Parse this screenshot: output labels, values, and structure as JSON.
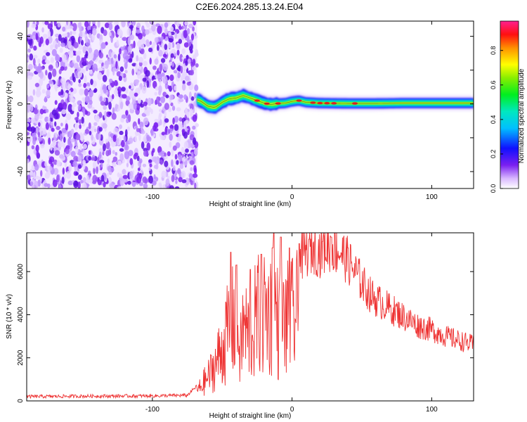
{
  "figure": {
    "title": "C2E6.2024.285.13.24.E04"
  },
  "chart_data": [
    {
      "type": "heatmap",
      "title": "C2E6.2024.285.13.24.E04",
      "xlabel": "Height of straight line (km)",
      "ylabel": "Frequency (Hz)",
      "xlim": [
        -190,
        130
      ],
      "ylim": [
        -50,
        49
      ],
      "xticks": [
        -100,
        0,
        100
      ],
      "yticks": [
        -40,
        -20,
        0,
        20,
        40
      ],
      "grid": false,
      "noise_region_x": [
        -190,
        -68
      ],
      "signal_center_freq": [
        [
          -68,
          2.5
        ],
        [
          -65,
          1.5
        ],
        [
          -60,
          -1.5
        ],
        [
          -55,
          -2.0
        ],
        [
          -50,
          1.0
        ],
        [
          -45,
          3.0
        ],
        [
          -40,
          3.5
        ],
        [
          -35,
          5.0
        ],
        [
          -30,
          3.5
        ],
        [
          -25,
          2.0
        ],
        [
          -20,
          0.5
        ],
        [
          -15,
          -0.3
        ],
        [
          -10,
          0.3
        ],
        [
          -5,
          0.5
        ],
        [
          0,
          1.5
        ],
        [
          5,
          2.0
        ],
        [
          10,
          1.0
        ],
        [
          20,
          0.5
        ],
        [
          40,
          0.3
        ],
        [
          60,
          0.3
        ],
        [
          80,
          0.5
        ],
        [
          100,
          0.5
        ],
        [
          120,
          0.5
        ],
        [
          130,
          0.5
        ]
      ],
      "colorbar": {
        "label": "Normalized spectral amplitude",
        "range": [
          0,
          0.97
        ],
        "ticks": [
          "0.0",
          "0.2",
          "0.4",
          "0.6",
          "0.8"
        ]
      }
    },
    {
      "type": "line",
      "xlabel": "Height of straight line (km)",
      "ylabel": "SNR (10 * v/v)",
      "xlim": [
        -190,
        130
      ],
      "ylim": [
        0,
        7800
      ],
      "xticks": [
        -100,
        0,
        100
      ],
      "yticks": [
        0,
        2000,
        4000,
        6000
      ],
      "grid": false,
      "color": "#ee3333",
      "x": [
        -190,
        -150,
        -100,
        -75,
        -68,
        -60,
        -55,
        -50,
        -45,
        -40,
        -37,
        -35,
        -30,
        -25,
        -20,
        -15,
        -12,
        -10,
        -5,
        0,
        5,
        10,
        15,
        20,
        25,
        30,
        35,
        40,
        45,
        50,
        55,
        60,
        70,
        80,
        90,
        100,
        110,
        120,
        130
      ],
      "y": [
        200,
        220,
        230,
        260,
        700,
        1800,
        2700,
        3900,
        5300,
        6300,
        3500,
        5500,
        4800,
        6200,
        6800,
        6400,
        7100,
        5600,
        5900,
        6100,
        6500,
        6900,
        7100,
        6900,
        7200,
        7100,
        6900,
        6500,
        6000,
        5500,
        5000,
        4700,
        4300,
        3900,
        3500,
        3300,
        3000,
        2800,
        2600
      ],
      "spike_peaks": [
        [
          -44,
          6900
        ],
        [
          -40,
          6300
        ],
        [
          -30,
          6100
        ],
        [
          -22,
          6800
        ],
        [
          -14,
          7100
        ],
        [
          -13,
          7800
        ],
        [
          -8,
          7600
        ],
        [
          -2,
          7100
        ],
        [
          5,
          7300
        ],
        [
          12,
          7500
        ],
        [
          22,
          7400
        ],
        [
          28,
          7600
        ],
        [
          40,
          7100
        ]
      ]
    }
  ]
}
